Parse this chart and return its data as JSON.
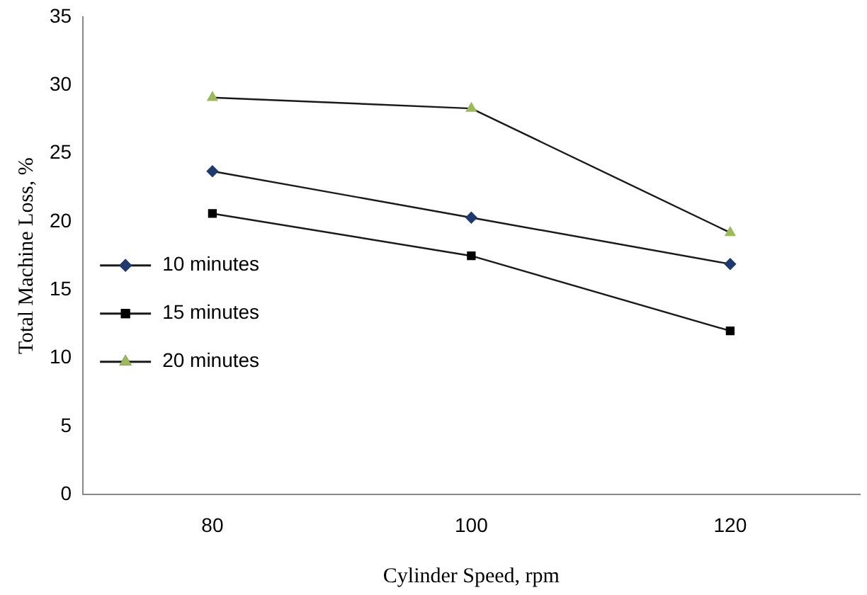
{
  "chart_data": {
    "type": "line",
    "xlabel": "Cylinder Speed, rpm",
    "ylabel": "Total Machine Loss, %",
    "categories": [
      "80",
      "100",
      "120"
    ],
    "series": [
      {
        "name": "10 minutes",
        "color": "#1f3a6e",
        "marker": "diamond",
        "values": [
          23.7,
          20.3,
          16.9
        ]
      },
      {
        "name": "15 minutes",
        "color": "#000000",
        "marker": "square",
        "values": [
          20.6,
          17.5,
          12.0
        ]
      },
      {
        "name": "20 minutes",
        "color": "#9bbb59",
        "marker": "triangle",
        "values": [
          29.1,
          28.3,
          19.2
        ]
      }
    ],
    "ylim": [
      0,
      35
    ],
    "yticks": [
      0,
      5,
      10,
      15,
      20,
      25,
      30,
      35
    ],
    "grid": false,
    "legend": "left"
  }
}
